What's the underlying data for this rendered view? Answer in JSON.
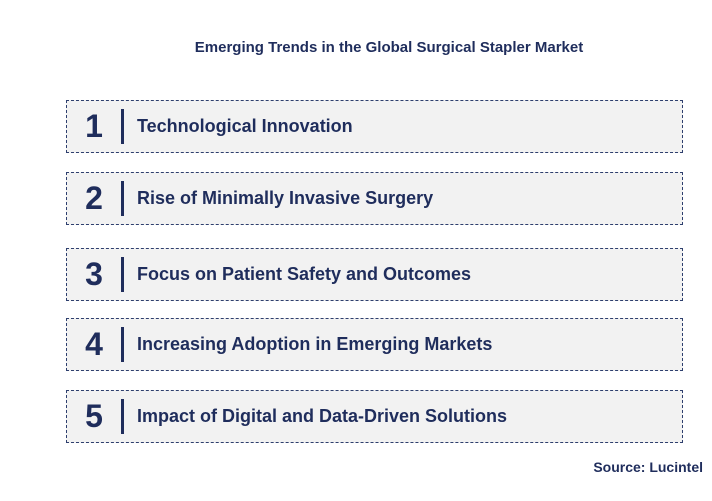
{
  "title": "Emerging Trends in the Global Surgical Stapler Market",
  "items": [
    {
      "number": 1,
      "label": "Technological Innovation"
    },
    {
      "number": 2,
      "label": "Rise of Minimally Invasive Surgery"
    },
    {
      "number": 3,
      "label": "Focus on Patient Safety and Outcomes"
    },
    {
      "number": 4,
      "label": "Increasing Adoption in Emerging Markets"
    },
    {
      "number": 5,
      "label": "Impact of Digital and Data-Driven Solutions"
    }
  ],
  "source": "Source: Lucintel"
}
